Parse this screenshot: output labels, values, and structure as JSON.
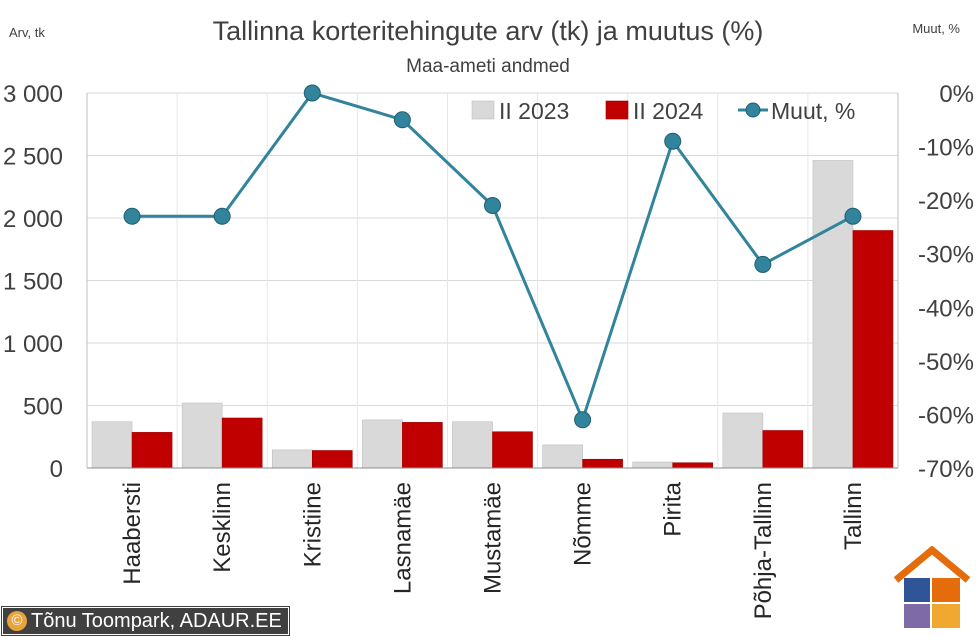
{
  "chart_data": {
    "type": "bar",
    "title": "Tallinna korteritehingute arv (tk) ja muutus (%)",
    "subtitle": "Maa-ameti andmed",
    "left_axis_label": "Arv, tk",
    "right_axis_label": "Muut, %",
    "categories": [
      "Haabersti",
      "Kesklinn",
      "Kristiine",
      "Lasnamäe",
      "Mustamäe",
      "Nõmme",
      "Pirita",
      "Põhja-Tallinn",
      "Tallinn"
    ],
    "series": [
      {
        "name": "II 2023",
        "kind": "bar",
        "axis": "left",
        "color": "#d9d9d9",
        "values": [
          370,
          520,
          145,
          385,
          370,
          185,
          48,
          440,
          2460
        ]
      },
      {
        "name": "II 2024",
        "kind": "bar",
        "axis": "left",
        "color": "#c00000",
        "values": [
          285,
          400,
          140,
          365,
          290,
          70,
          42,
          300,
          1900
        ]
      },
      {
        "name": "Muut, %",
        "kind": "line",
        "axis": "right",
        "color": "#31849b",
        "values": [
          -23,
          -23,
          0,
          -5,
          -21,
          -61,
          -9,
          -32,
          -23
        ]
      }
    ],
    "left_axis": {
      "min": 0,
      "max": 3000,
      "step": 500,
      "tick_labels": [
        "0",
        "500",
        "1 000",
        "1 500",
        "2 000",
        "2 500",
        "3 000"
      ]
    },
    "right_axis": {
      "min": -70,
      "max": 0,
      "step": 10,
      "tick_labels": [
        "-70%",
        "-60%",
        "-50%",
        "-40%",
        "-30%",
        "-20%",
        "-10%",
        "0%"
      ]
    },
    "grid": true,
    "legend_position": "top-right"
  },
  "footer": {
    "copyright_symbol": "©",
    "credit": "Tõnu Toompark, ADAUR.EE"
  },
  "logo": {
    "icon": "house-puzzle-icon",
    "colors": [
      "#e46c0a",
      "#2f5597",
      "#7f6aa8",
      "#f0a830"
    ]
  }
}
